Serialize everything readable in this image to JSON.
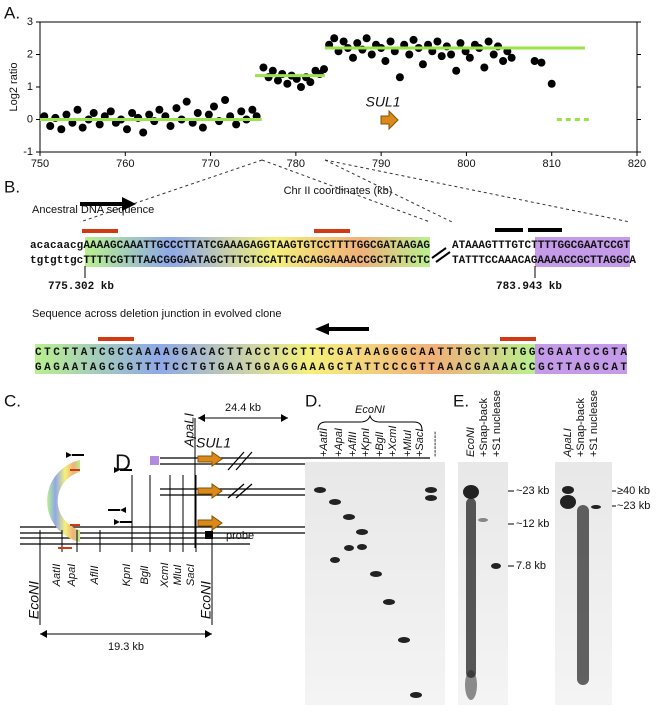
{
  "chart_data": {
    "type": "scatter",
    "label": "A.",
    "y_label": "Log2 ratio",
    "x_label": "Chr II coordinates (kb)",
    "xlim": [
      750,
      820
    ],
    "xticks": [
      750,
      760,
      770,
      780,
      790,
      800,
      810,
      820
    ],
    "ylim": [
      -1,
      3
    ],
    "yticks": [
      -1,
      0,
      1,
      2,
      3
    ],
    "color": "#000000",
    "segment_color": "#9be34a",
    "x": [
      750.5,
      751.2,
      751.8,
      752.5,
      753.1,
      753.8,
      754.4,
      755.0,
      755.7,
      756.3,
      757.0,
      757.6,
      758.3,
      758.9,
      759.5,
      760.2,
      760.8,
      761.5,
      762.1,
      762.8,
      763.4,
      764.0,
      764.7,
      765.3,
      766.0,
      766.6,
      767.2,
      767.9,
      768.5,
      769.1,
      769.8,
      770.4,
      771.0,
      771.7,
      772.3,
      773.0,
      773.6,
      774.2,
      774.9,
      775.4,
      776.2,
      776.8,
      777.3,
      777.9,
      778.4,
      779.0,
      779.5,
      780.1,
      780.6,
      781.2,
      781.7,
      782.3,
      782.8,
      783.3,
      783.9,
      784.5,
      785.0,
      785.6,
      786.1,
      786.7,
      787.2,
      787.8,
      788.3,
      788.9,
      789.4,
      790.0,
      790.5,
      791.1,
      791.6,
      792.2,
      792.7,
      793.3,
      793.8,
      794.4,
      794.9,
      795.5,
      796.0,
      796.6,
      797.1,
      797.7,
      798.2,
      798.8,
      799.3,
      799.9,
      800.4,
      801.0,
      801.5,
      802.1,
      802.6,
      803.2,
      803.7,
      804.3,
      804.8,
      805.3,
      808.0,
      808.8,
      810.0
    ],
    "values": [
      0.1,
      -0.2,
      0.05,
      -0.3,
      0.15,
      -0.1,
      0.3,
      -0.25,
      0.0,
      0.2,
      -0.15,
      0.1,
      0.25,
      -0.1,
      0.0,
      -0.3,
      0.2,
      0.05,
      -0.4,
      0.15,
      -0.05,
      0.3,
      0.1,
      -0.2,
      0.35,
      0.0,
      0.55,
      -0.1,
      0.2,
      -0.25,
      0.15,
      0.4,
      -0.05,
      0.6,
      0.1,
      -0.15,
      0.25,
      0.0,
      0.3,
      0.1,
      1.6,
      1.3,
      1.5,
      1.2,
      1.4,
      1.1,
      1.35,
      1.25,
      1.0,
      1.3,
      1.15,
      1.5,
      1.4,
      1.55,
      2.3,
      2.5,
      2.1,
      2.4,
      2.2,
      1.9,
      2.35,
      2.15,
      2.5,
      2.0,
      2.3,
      2.2,
      1.8,
      2.4,
      2.1,
      1.3,
      2.3,
      2.0,
      2.45,
      2.2,
      1.7,
      2.3,
      2.1,
      2.4,
      1.95,
      2.25,
      2.0,
      1.5,
      2.35,
      2.1,
      1.9,
      2.3,
      2.2,
      1.6,
      2.4,
      2.0,
      2.25,
      1.8,
      2.1,
      1.9,
      1.8,
      1.75,
      1.1
    ],
    "segments": [
      {
        "x": [
          750,
          776
        ],
        "y": 0
      },
      {
        "x": [
          775.2,
          783.4
        ],
        "y": 1.35
      },
      {
        "x": [
          783.4,
          813.9
        ],
        "y": 2.2
      },
      {
        "x": [
          810.6,
          814.5
        ],
        "y": 0,
        "dashed": true
      }
    ],
    "annotation": "SUL1"
  },
  "panel_b": {
    "label": "B.",
    "ancestral_title": "Ancestral DNA sequence",
    "top_left": "acacaacgAAAAGCAAATTGCCCTTATCGAAAGAGGTAAGTGTCCTTTTGGCGATAAGAG",
    "bottom_left": "tgtgttgcTTTTCGTTTAACGGGAATAGCTTTCTCCATTCACAGGAAAACCGCTATTCTC",
    "top_right": "ATAAAGTTTGTCTTTTGGCGAATCCGT",
    "bottom_right": "TATTTCCAAACAGAAAACCGCTTAGGCA",
    "coord_left": "775.302 kb",
    "coord_right": "783.943 kb",
    "junction_title": "Sequence across deletion junction in evolved clone",
    "junction_top": "CTCTTATCGCCAAAAGGACACTTACCTCCTTTCGATAAGGGCAATTTGCTTTTGGCGAATCCGTA",
    "junction_bottom": "GAGAATAGCGGTTTTCCTGTGAATGGAGGAAAGCTATTCCCGTTAAACGAAAACCGCTTAGGCAT"
  },
  "panel_c": {
    "label": "C.",
    "dist_top": "24.4 kb",
    "apali": "ApaLI",
    "gene": "SUL1",
    "d": "D",
    "probe": "probe",
    "enzymes": [
      "EcoNI",
      "AatII",
      "ApaI",
      "AflII",
      "KpnI",
      "BglI",
      "XcmI",
      "MluI",
      "SacI",
      "EcoNI"
    ],
    "dist_bottom": "19.3 kb"
  },
  "panel_d": {
    "label": "D.",
    "enzyme": "EcoNI",
    "lanes": [
      "+AatII",
      "+ApaI",
      "+AflII",
      "+KpnI",
      "+BglI",
      "+XcmI",
      "+MluI",
      "+SacI",
      "-------"
    ]
  },
  "panel_e": {
    "label": "E.",
    "lanes_1": [
      "EcoNI",
      "+Snap-back",
      "+S1 nuclease"
    ],
    "markers_1": [
      "~23 kb",
      "~12 kb",
      "7.8 kb"
    ],
    "lanes_2": [
      "ApaLI",
      "+Snap-back",
      "+S1 nuclease"
    ],
    "markers_2": [
      "≥40 kb",
      "~23 kb"
    ]
  }
}
